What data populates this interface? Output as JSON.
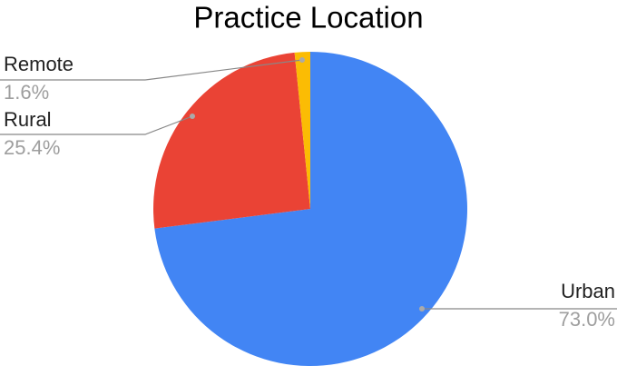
{
  "chart_data": {
    "type": "pie",
    "title": "Practice Location",
    "categories": [
      "Urban",
      "Rural",
      "Remote"
    ],
    "values": [
      73.0,
      25.4,
      1.6
    ],
    "value_labels": [
      "73.0%",
      "25.4%",
      "1.6%"
    ],
    "colors": [
      "#4285f4",
      "#ea4335",
      "#fbbc04"
    ]
  }
}
